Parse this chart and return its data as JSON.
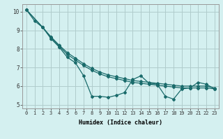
{
  "title": "",
  "xlabel": "Humidex (Indice chaleur)",
  "xlim": [
    -0.5,
    23.5
  ],
  "ylim": [
    4.8,
    10.4
  ],
  "xticks": [
    0,
    1,
    2,
    3,
    4,
    5,
    6,
    7,
    8,
    9,
    10,
    11,
    12,
    13,
    14,
    15,
    16,
    17,
    18,
    19,
    20,
    21,
    22,
    23
  ],
  "yticks": [
    5,
    6,
    7,
    8,
    9,
    10
  ],
  "background_color": "#d4f0f0",
  "grid_color": "#b0cccc",
  "line_color": "#1a6b6b",
  "series": [
    {
      "x": [
        0,
        1,
        2,
        3,
        4,
        5,
        6,
        7,
        8,
        9,
        10,
        11,
        12,
        13,
        14,
        15,
        16,
        17,
        18,
        19,
        20,
        21,
        22,
        23
      ],
      "y": [
        10.1,
        9.5,
        9.15,
        8.55,
        8.1,
        7.55,
        7.25,
        6.55,
        5.45,
        5.45,
        5.4,
        5.5,
        5.65,
        6.35,
        6.55,
        6.15,
        6.1,
        5.45,
        5.3,
        5.85,
        5.9,
        6.2,
        6.1,
        5.85
      ]
    },
    {
      "x": [
        0,
        2,
        3,
        4,
        5,
        6,
        7,
        8,
        9,
        10,
        11,
        12,
        13,
        14,
        15,
        16,
        17,
        18,
        19,
        20,
        21,
        22,
        23
      ],
      "y": [
        10.1,
        9.15,
        8.6,
        8.15,
        7.7,
        7.4,
        7.1,
        6.85,
        6.65,
        6.5,
        6.4,
        6.3,
        6.2,
        6.15,
        6.1,
        6.05,
        6.0,
        5.95,
        5.9,
        5.9,
        5.9,
        5.9,
        5.85
      ]
    },
    {
      "x": [
        0,
        2,
        3,
        4,
        5,
        6,
        7,
        8,
        9,
        10,
        11,
        12,
        13,
        14,
        15,
        16,
        17,
        18,
        19,
        20,
        21,
        22,
        23
      ],
      "y": [
        10.1,
        9.15,
        8.65,
        8.2,
        7.8,
        7.5,
        7.2,
        6.95,
        6.75,
        6.6,
        6.5,
        6.4,
        6.3,
        6.25,
        6.2,
        6.15,
        6.1,
        6.05,
        6.0,
        6.0,
        6.0,
        6.0,
        5.9
      ]
    }
  ]
}
